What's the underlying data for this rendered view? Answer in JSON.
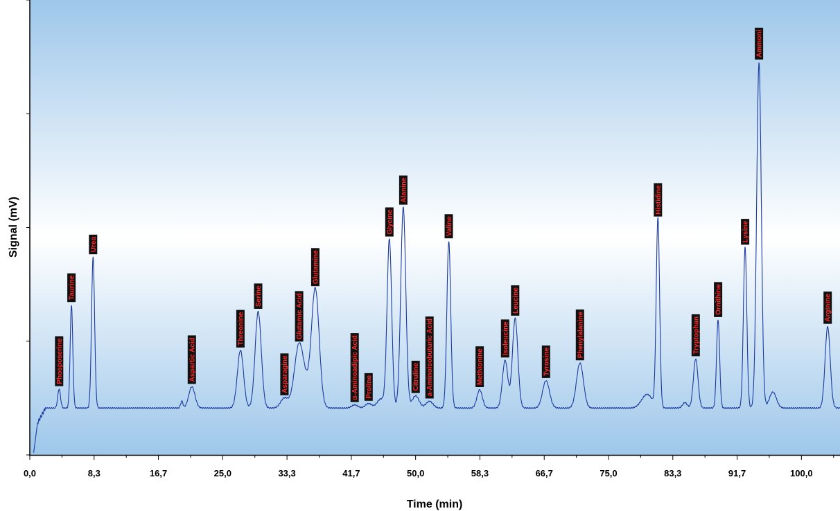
{
  "chart_data": {
    "type": "line",
    "title": "",
    "xlabel": "Time (min)",
    "ylabel": "Signal (mV)",
    "xlim": [
      0,
      105
    ],
    "ylim": [
      0,
      100
    ],
    "x_ticks": [
      "0,0",
      "8,3",
      "16,7",
      "25,0",
      "33,3",
      "41,7",
      "50,0",
      "58,3",
      "66,7",
      "75,0",
      "83,3",
      "91,7",
      "100,0"
    ],
    "x_tick_values": [
      0,
      8.333,
      16.667,
      25,
      33.333,
      41.667,
      50,
      58.333,
      66.667,
      75,
      83.333,
      91.667,
      100
    ],
    "y_tick_values": [
      0,
      25,
      50,
      75,
      100
    ],
    "grid": false,
    "baseline": 10.3,
    "line_color": "#1a3aa0",
    "background_gradient": [
      "#9ec7ea",
      "#ffffff",
      "#9ec7ea"
    ],
    "label_box_color": "#111111",
    "label_text_color": "#ff2a2a",
    "peaks": [
      {
        "name": "Phosposerine",
        "x": 3.8,
        "height": 14.5,
        "width": 0.18
      },
      {
        "name": "Taurine",
        "x": 5.4,
        "height": 33,
        "width": 0.17
      },
      {
        "name": "Urea",
        "x": 8.2,
        "height": 43.5,
        "width": 0.2
      },
      {
        "name": "Aspartic Acid",
        "x": 21.0,
        "height": 15,
        "width": 0.4
      },
      {
        "name": "Threonine",
        "x": 27.3,
        "height": 23,
        "width": 0.4
      },
      {
        "name": "Serine",
        "x": 29.6,
        "height": 31.5,
        "width": 0.4
      },
      {
        "name": "Asparagine",
        "x": 33.0,
        "height": 12.5,
        "width": 0.5
      },
      {
        "name": "Glutamic Acid",
        "x": 34.9,
        "height": 24.3,
        "width": 0.6
      },
      {
        "name": "Glutamine",
        "x": 37.0,
        "height": 36.5,
        "width": 0.5
      },
      {
        "name": "α-Aminoadipic Acid",
        "x": 42.1,
        "height": 11,
        "width": 0.4
      },
      {
        "name": "Proline",
        "x": 43.9,
        "height": 11.3,
        "width": 0.4
      },
      {
        "name": "Glycine",
        "x": 46.6,
        "height": 47.4,
        "width": 0.3
      },
      {
        "name": "Alanine",
        "x": 48.4,
        "height": 54.4,
        "width": 0.33
      },
      {
        "name": "Citruline",
        "x": 50.0,
        "height": 13,
        "width": 0.45
      },
      {
        "name": "a-Aminoisobuturic Acid",
        "x": 51.8,
        "height": 11.8,
        "width": 0.45
      },
      {
        "name": "Valine",
        "x": 54.3,
        "height": 47,
        "width": 0.25
      },
      {
        "name": "Methionine",
        "x": 58.3,
        "height": 14.3,
        "width": 0.35
      },
      {
        "name": "Isoleucine",
        "x": 61.6,
        "height": 20.8,
        "width": 0.35
      },
      {
        "name": "Leucine",
        "x": 62.9,
        "height": 30,
        "width": 0.35
      },
      {
        "name": "Tyrosine",
        "x": 66.9,
        "height": 16.3,
        "width": 0.45
      },
      {
        "name": "Phenylalanine",
        "x": 71.3,
        "height": 20.2,
        "width": 0.45
      },
      {
        "name": "Histidine",
        "x": 81.4,
        "height": 51.8,
        "width": 0.22
      },
      {
        "name": "Tryptophan",
        "x": 86.3,
        "height": 21.1,
        "width": 0.3
      },
      {
        "name": "Ornithine",
        "x": 89.2,
        "height": 29.7,
        "width": 0.2
      },
      {
        "name": "Lysine",
        "x": 92.7,
        "height": 45.6,
        "width": 0.22
      },
      {
        "name": "Ammoni",
        "x": 94.5,
        "height": 86.3,
        "width": 0.3
      },
      {
        "name": "Arginine",
        "x": 103.4,
        "height": 28.2,
        "width": 0.33
      }
    ]
  }
}
